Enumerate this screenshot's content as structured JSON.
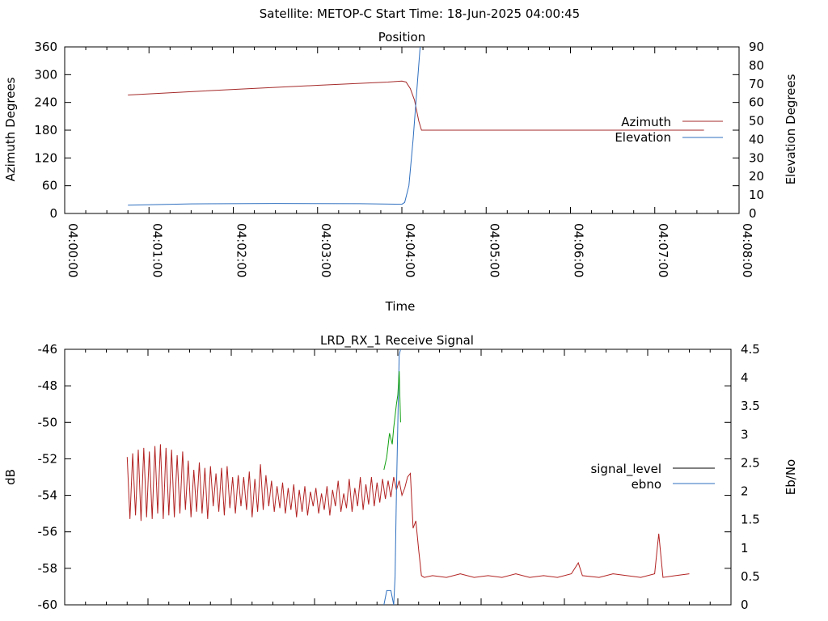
{
  "page_title": "Satellite: METOP-C    Start Time: 18-Jun-2025 04:00:45",
  "colors": {
    "azimuth": "#a52a2a",
    "elevation": "#2e6fbf",
    "signal_level_drawn": "#b22222",
    "ebno_segment_green": "#10a010",
    "legend_signal_level": "#000000",
    "legend_ebno": "#2e6fbf"
  },
  "chart_data": [
    {
      "type": "line",
      "title": "Position",
      "xlabel": "Time",
      "ylabel": "Azimuth Degrees",
      "y2label": "Elevation Degrees",
      "x_ticks": [
        "04:00:00",
        "04:01:00",
        "04:02:00",
        "04:03:00",
        "04:04:00",
        "04:05:00",
        "04:06:00",
        "04:07:00",
        "04:08:00"
      ],
      "xlim": [
        "04:00:00",
        "04:08:00"
      ],
      "ylim": [
        0,
        360
      ],
      "y_ticks": [
        "0",
        "60",
        "120",
        "180",
        "240",
        "300",
        "360"
      ],
      "y2lim": [
        0,
        90
      ],
      "y2_ticks": [
        "0",
        "10",
        "20",
        "30",
        "40",
        "50",
        "60",
        "70",
        "80",
        "90"
      ],
      "legend_position": "right",
      "series": [
        {
          "name": "Azimuth",
          "axis": "y",
          "points": [
            [
              "04:00:45",
              256
            ],
            [
              "04:02:00",
              268
            ],
            [
              "04:03:00",
              277
            ],
            [
              "04:03:50",
              284
            ],
            [
              "04:04:00",
              286
            ],
            [
              "04:04:03",
              284
            ],
            [
              "04:04:06",
              270
            ],
            [
              "04:04:09",
              245
            ],
            [
              "04:04:12",
              200
            ],
            [
              "04:04:14",
              180
            ],
            [
              "04:07:35",
              180
            ]
          ]
        },
        {
          "name": "Elevation",
          "axis": "y2",
          "points": [
            [
              "04:00:45",
              4.5
            ],
            [
              "04:01:30",
              5.2
            ],
            [
              "04:02:30",
              5.4
            ],
            [
              "04:03:30",
              5.3
            ],
            [
              "04:04:00",
              5.0
            ],
            [
              "04:04:02",
              6
            ],
            [
              "04:04:05",
              15
            ],
            [
              "04:04:08",
              40
            ],
            [
              "04:04:11",
              70
            ],
            [
              "04:04:13",
              90
            ]
          ]
        }
      ]
    },
    {
      "type": "line",
      "title": "LRD_RX_1 Receive Signal",
      "xlabel": "",
      "ylabel": "dB",
      "y2label": "Eb/No",
      "xlim": [
        "04:00:00",
        "04:08:00"
      ],
      "ylim": [
        -60,
        -46
      ],
      "y_ticks": [
        "-60",
        "-58",
        "-56",
        "-54",
        "-52",
        "-50",
        "-48",
        "-46"
      ],
      "y2lim": [
        0,
        4.5
      ],
      "y2_ticks": [
        "0",
        "0.5",
        "1",
        "1.5",
        "2",
        "2.5",
        "3",
        "3.5",
        "4",
        "4.5"
      ],
      "legend_position": "right",
      "series": [
        {
          "name": "signal_level",
          "axis": "y",
          "points": [
            [
              "04:00:45",
              -51.9
            ],
            [
              "04:00:47",
              -55.3
            ],
            [
              "04:00:49",
              -51.7
            ],
            [
              "04:00:51",
              -55.1
            ],
            [
              "04:00:53",
              -51.5
            ],
            [
              "04:00:55",
              -55.4
            ],
            [
              "04:00:57",
              -51.4
            ],
            [
              "04:00:59",
              -55.2
            ],
            [
              "04:01:01",
              -51.6
            ],
            [
              "04:01:03",
              -55.3
            ],
            [
              "04:01:05",
              -51.3
            ],
            [
              "04:01:07",
              -55.0
            ],
            [
              "04:01:09",
              -51.2
            ],
            [
              "04:01:11",
              -55.3
            ],
            [
              "04:01:13",
              -51.4
            ],
            [
              "04:01:15",
              -55.1
            ],
            [
              "04:01:17",
              -51.5
            ],
            [
              "04:01:19",
              -55.2
            ],
            [
              "04:01:21",
              -51.8
            ],
            [
              "04:01:23",
              -55.0
            ],
            [
              "04:01:25",
              -51.6
            ],
            [
              "04:01:27",
              -54.8
            ],
            [
              "04:01:29",
              -52.1
            ],
            [
              "04:01:31",
              -55.2
            ],
            [
              "04:01:33",
              -52.6
            ],
            [
              "04:01:35",
              -54.9
            ],
            [
              "04:01:37",
              -52.2
            ],
            [
              "04:01:39",
              -55.0
            ],
            [
              "04:01:41",
              -52.5
            ],
            [
              "04:01:43",
              -55.3
            ],
            [
              "04:01:45",
              -52.4
            ],
            [
              "04:01:47",
              -54.6
            ],
            [
              "04:01:49",
              -52.8
            ],
            [
              "04:01:51",
              -54.9
            ],
            [
              "04:01:53",
              -52.5
            ],
            [
              "04:01:55",
              -55.1
            ],
            [
              "04:01:57",
              -52.4
            ],
            [
              "04:01:59",
              -54.7
            ],
            [
              "04:02:01",
              -53.0
            ],
            [
              "04:02:03",
              -55.0
            ],
            [
              "04:02:05",
              -52.9
            ],
            [
              "04:02:07",
              -54.6
            ],
            [
              "04:02:09",
              -53.0
            ],
            [
              "04:02:11",
              -54.8
            ],
            [
              "04:02:13",
              -52.7
            ],
            [
              "04:02:15",
              -55.2
            ],
            [
              "04:02:17",
              -53.1
            ],
            [
              "04:02:19",
              -54.9
            ],
            [
              "04:02:21",
              -52.3
            ],
            [
              "04:02:23",
              -54.8
            ],
            [
              "04:02:25",
              -52.9
            ],
            [
              "04:02:27",
              -54.6
            ],
            [
              "04:02:29",
              -53.2
            ],
            [
              "04:02:31",
              -54.9
            ],
            [
              "04:02:33",
              -53.5
            ],
            [
              "04:02:35",
              -54.7
            ],
            [
              "04:02:37",
              -53.3
            ],
            [
              "04:02:39",
              -55.0
            ],
            [
              "04:02:41",
              -53.6
            ],
            [
              "04:02:43",
              -54.8
            ],
            [
              "04:02:45",
              -53.4
            ],
            [
              "04:02:47",
              -55.2
            ],
            [
              "04:02:49",
              -53.7
            ],
            [
              "04:02:51",
              -54.9
            ],
            [
              "04:02:53",
              -53.5
            ],
            [
              "04:02:55",
              -55.1
            ],
            [
              "04:02:57",
              -53.8
            ],
            [
              "04:02:59",
              -54.6
            ],
            [
              "04:03:01",
              -53.6
            ],
            [
              "04:03:03",
              -55.0
            ],
            [
              "04:03:05",
              -53.9
            ],
            [
              "04:03:07",
              -54.8
            ],
            [
              "04:03:09",
              -53.5
            ],
            [
              "04:03:11",
              -55.1
            ],
            [
              "04:03:13",
              -53.7
            ],
            [
              "04:03:15",
              -54.6
            ],
            [
              "04:03:17",
              -53.2
            ],
            [
              "04:03:19",
              -54.9
            ],
            [
              "04:03:21",
              -53.9
            ],
            [
              "04:03:23",
              -54.7
            ],
            [
              "04:03:25",
              -53.1
            ],
            [
              "04:03:27",
              -54.9
            ],
            [
              "04:03:29",
              -53.6
            ],
            [
              "04:03:31",
              -54.6
            ],
            [
              "04:03:33",
              -53.0
            ],
            [
              "04:03:35",
              -54.8
            ],
            [
              "04:03:37",
              -53.4
            ],
            [
              "04:03:39",
              -54.5
            ],
            [
              "04:03:41",
              -53.0
            ],
            [
              "04:03:43",
              -54.6
            ],
            [
              "04:03:45",
              -53.3
            ],
            [
              "04:03:47",
              -54.4
            ],
            [
              "04:03:49",
              -53.1
            ],
            [
              "04:03:51",
              -54.2
            ],
            [
              "04:03:53",
              -53.2
            ],
            [
              "04:03:55",
              -54.1
            ],
            [
              "04:03:57",
              -53.0
            ],
            [
              "04:03:59",
              -53.7
            ],
            [
              "04:04:01",
              -53.2
            ],
            [
              "04:04:03",
              -54.0
            ],
            [
              "04:04:05",
              -53.6
            ],
            [
              "04:04:07",
              -53.0
            ],
            [
              "04:04:09",
              -52.8
            ],
            [
              "04:04:11",
              -55.8
            ],
            [
              "04:04:13",
              -55.4
            ],
            [
              "04:04:15",
              -57.0
            ],
            [
              "04:04:17",
              -58.4
            ],
            [
              "04:04:19",
              -58.5
            ],
            [
              "04:04:25",
              -58.4
            ],
            [
              "04:04:35",
              -58.5
            ],
            [
              "04:04:45",
              -58.3
            ],
            [
              "04:04:55",
              -58.5
            ],
            [
              "04:05:05",
              -58.4
            ],
            [
              "04:05:15",
              -58.5
            ],
            [
              "04:05:25",
              -58.3
            ],
            [
              "04:05:35",
              -58.5
            ],
            [
              "04:05:45",
              -58.4
            ],
            [
              "04:05:55",
              -58.5
            ],
            [
              "04:06:05",
              -58.3
            ],
            [
              "04:06:10",
              -57.7
            ],
            [
              "04:06:13",
              -58.4
            ],
            [
              "04:06:25",
              -58.5
            ],
            [
              "04:06:35",
              -58.3
            ],
            [
              "04:06:45",
              -58.4
            ],
            [
              "04:06:55",
              -58.5
            ],
            [
              "04:07:05",
              -58.3
            ],
            [
              "04:07:08",
              -56.1
            ],
            [
              "04:07:11",
              -58.5
            ],
            [
              "04:07:20",
              -58.4
            ],
            [
              "04:07:30",
              -58.3
            ]
          ]
        },
        {
          "name": "ebno",
          "axis": "y2",
          "points": [
            [
              "04:03:50",
              0
            ],
            [
              "04:03:52",
              0.25
            ],
            [
              "04:03:55",
              0.25
            ],
            [
              "04:03:57",
              0
            ],
            [
              "04:03:58",
              0.5
            ],
            [
              "04:03:59",
              2.0
            ],
            [
              "04:04:00",
              3.2
            ],
            [
              "04:04:01",
              4.4
            ],
            [
              "04:04:02",
              4.5
            ]
          ]
        }
      ]
    }
  ]
}
